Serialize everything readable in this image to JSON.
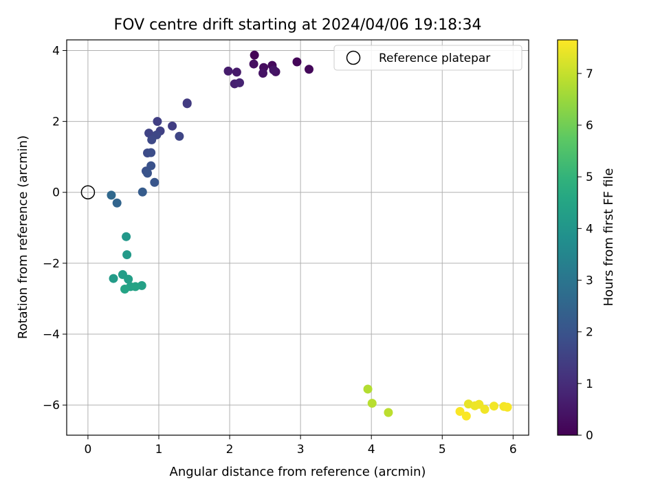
{
  "chart_data": {
    "type": "scatter",
    "title": "FOV centre drift starting at 2024/04/06 19:18:34",
    "xlabel": "Angular distance from reference (arcmin)",
    "ylabel": "Rotation from reference (arcmin)",
    "xlim": [
      -0.3,
      6.22
    ],
    "ylim": [
      -6.85,
      4.3
    ],
    "xticks": [
      0,
      1,
      2,
      3,
      4,
      5,
      6
    ],
    "yticks": [
      -6,
      -4,
      -2,
      0,
      2,
      4
    ],
    "grid": true,
    "legend": {
      "placement": "top-right",
      "entries": [
        "Reference platepar"
      ]
    },
    "reference_point": {
      "x": 0,
      "y": 0,
      "label": "Reference platepar"
    },
    "colorbar": {
      "label": "Hours from first FF file",
      "range": [
        0,
        7.65
      ],
      "ticks": [
        0,
        1,
        2,
        3,
        4,
        5,
        6,
        7
      ],
      "colormap": "viridis"
    },
    "points": [
      {
        "x": 2.35,
        "y": 3.87,
        "h": 0.05
      },
      {
        "x": 2.95,
        "y": 3.68,
        "h": 0.1
      },
      {
        "x": 3.12,
        "y": 3.47,
        "h": 0.15
      },
      {
        "x": 2.6,
        "y": 3.58,
        "h": 0.2
      },
      {
        "x": 2.48,
        "y": 3.52,
        "h": 0.25
      },
      {
        "x": 2.34,
        "y": 3.62,
        "h": 0.3
      },
      {
        "x": 2.65,
        "y": 3.4,
        "h": 0.35
      },
      {
        "x": 2.47,
        "y": 3.36,
        "h": 0.4
      },
      {
        "x": 2.62,
        "y": 3.45,
        "h": 0.45
      },
      {
        "x": 2.1,
        "y": 3.39,
        "h": 0.55
      },
      {
        "x": 1.98,
        "y": 3.42,
        "h": 0.6
      },
      {
        "x": 2.07,
        "y": 3.06,
        "h": 0.7
      },
      {
        "x": 2.14,
        "y": 3.09,
        "h": 0.75
      },
      {
        "x": 1.4,
        "y": 2.52,
        "h": 1.3
      },
      {
        "x": 1.4,
        "y": 2.5,
        "h": 1.35
      },
      {
        "x": 1.19,
        "y": 1.87,
        "h": 1.4
      },
      {
        "x": 0.98,
        "y": 2.0,
        "h": 1.45
      },
      {
        "x": 1.02,
        "y": 1.73,
        "h": 1.5
      },
      {
        "x": 0.86,
        "y": 1.67,
        "h": 1.55
      },
      {
        "x": 1.29,
        "y": 1.58,
        "h": 1.6
      },
      {
        "x": 0.97,
        "y": 1.62,
        "h": 1.65
      },
      {
        "x": 0.9,
        "y": 1.48,
        "h": 1.7
      },
      {
        "x": 0.84,
        "y": 1.11,
        "h": 1.75
      },
      {
        "x": 0.89,
        "y": 1.12,
        "h": 1.8
      },
      {
        "x": 0.82,
        "y": 0.6,
        "h": 1.9
      },
      {
        "x": 0.89,
        "y": 0.75,
        "h": 1.95
      },
      {
        "x": 0.84,
        "y": 0.54,
        "h": 2.0
      },
      {
        "x": 0.94,
        "y": 0.28,
        "h": 2.05
      },
      {
        "x": 0.77,
        "y": 0.01,
        "h": 2.25
      },
      {
        "x": 0.41,
        "y": -0.3,
        "h": 2.5
      },
      {
        "x": 0.33,
        "y": -0.08,
        "h": 2.6
      },
      {
        "x": 0.54,
        "y": -1.25,
        "h": 4.1
      },
      {
        "x": 0.55,
        "y": -1.76,
        "h": 4.15
      },
      {
        "x": 0.36,
        "y": -2.43,
        "h": 4.2
      },
      {
        "x": 0.49,
        "y": -2.32,
        "h": 4.25
      },
      {
        "x": 0.57,
        "y": -2.45,
        "h": 4.3
      },
      {
        "x": 0.76,
        "y": -2.63,
        "h": 4.35
      },
      {
        "x": 0.6,
        "y": -2.66,
        "h": 4.4
      },
      {
        "x": 0.67,
        "y": -2.66,
        "h": 4.45
      },
      {
        "x": 0.52,
        "y": -2.73,
        "h": 4.5
      },
      {
        "x": 3.95,
        "y": -5.55,
        "h": 6.8
      },
      {
        "x": 4.01,
        "y": -5.95,
        "h": 6.85
      },
      {
        "x": 4.24,
        "y": -6.21,
        "h": 6.9
      },
      {
        "x": 5.37,
        "y": -5.97,
        "h": 7.4
      },
      {
        "x": 5.46,
        "y": -6.02,
        "h": 7.45
      },
      {
        "x": 5.52,
        "y": -5.98,
        "h": 7.48
      },
      {
        "x": 5.6,
        "y": -6.12,
        "h": 7.5
      },
      {
        "x": 5.73,
        "y": -6.03,
        "h": 7.52
      },
      {
        "x": 5.87,
        "y": -6.04,
        "h": 7.55
      },
      {
        "x": 5.92,
        "y": -6.06,
        "h": 7.58
      },
      {
        "x": 5.25,
        "y": -6.18,
        "h": 7.6
      },
      {
        "x": 5.34,
        "y": -6.31,
        "h": 7.62
      }
    ]
  }
}
